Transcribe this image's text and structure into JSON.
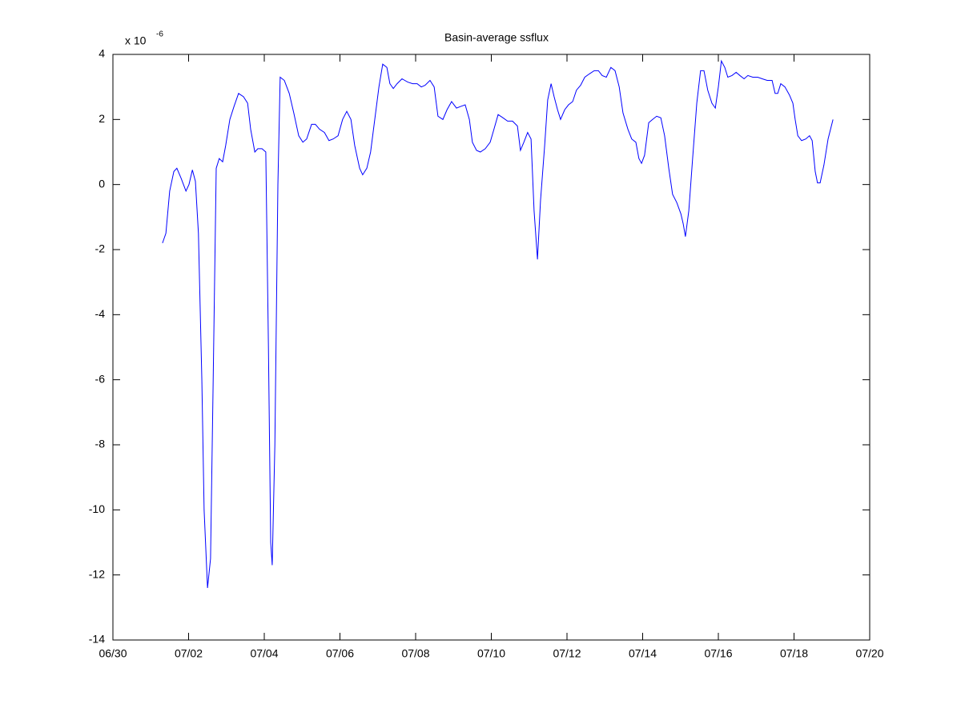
{
  "chart_data": {
    "type": "line",
    "title": "Basin-average ssflux",
    "y_multiplier": {
      "base": "x 10",
      "exponent": "-6"
    },
    "xlim": [
      0,
      20
    ],
    "xticks": [
      {
        "value": 0,
        "label": "06/30"
      },
      {
        "value": 2,
        "label": "07/02"
      },
      {
        "value": 4,
        "label": "07/04"
      },
      {
        "value": 6,
        "label": "07/06"
      },
      {
        "value": 8,
        "label": "07/08"
      },
      {
        "value": 10,
        "label": "07/10"
      },
      {
        "value": 12,
        "label": "07/12"
      },
      {
        "value": 14,
        "label": "07/14"
      },
      {
        "value": 16,
        "label": "07/16"
      },
      {
        "value": 18,
        "label": "07/18"
      },
      {
        "value": 20,
        "label": "07/20"
      }
    ],
    "ylim": [
      -14,
      4
    ],
    "yticks": [
      -14,
      -12,
      -10,
      -8,
      -6,
      -4,
      -2,
      0,
      2,
      4
    ],
    "grid": false,
    "x": [
      1.31,
      1.4,
      1.5,
      1.61,
      1.69,
      1.8,
      1.93,
      2.01,
      2.1,
      2.18,
      2.26,
      2.35,
      2.41,
      2.5,
      2.58,
      2.65,
      2.73,
      2.81,
      2.9,
      2.98,
      3.09,
      3.2,
      3.32,
      3.45,
      3.56,
      3.64,
      3.75,
      3.83,
      3.94,
      4.04,
      4.11,
      4.17,
      4.21,
      4.28,
      4.36,
      4.42,
      4.53,
      4.66,
      4.78,
      4.91,
      5.02,
      5.12,
      5.25,
      5.35,
      5.46,
      5.59,
      5.71,
      5.82,
      5.95,
      6.07,
      6.18,
      6.29,
      6.39,
      6.52,
      6.6,
      6.71,
      6.81,
      6.92,
      7.03,
      7.13,
      7.24,
      7.32,
      7.41,
      7.51,
      7.64,
      7.79,
      7.92,
      8.04,
      8.15,
      8.25,
      8.38,
      8.49,
      8.59,
      8.72,
      8.83,
      8.95,
      9.08,
      9.19,
      9.31,
      9.42,
      9.5,
      9.61,
      9.71,
      9.84,
      9.97,
      10.07,
      10.18,
      10.31,
      10.43,
      10.56,
      10.69,
      10.77,
      10.86,
      10.96,
      11.05,
      11.13,
      11.22,
      11.3,
      11.41,
      11.49,
      11.58,
      11.66,
      11.75,
      11.83,
      11.94,
      12.04,
      12.15,
      12.25,
      12.36,
      12.47,
      12.59,
      12.72,
      12.83,
      12.93,
      13.04,
      13.16,
      13.27,
      13.38,
      13.48,
      13.61,
      13.71,
      13.82,
      13.9,
      13.97,
      14.05,
      14.16,
      14.26,
      14.37,
      14.48,
      14.58,
      14.69,
      14.79,
      14.9,
      15.01,
      15.07,
      15.13,
      15.22,
      15.32,
      15.43,
      15.53,
      15.62,
      15.72,
      15.83,
      15.92,
      16.0,
      16.08,
      16.17,
      16.25,
      16.36,
      16.47,
      16.57,
      16.68,
      16.78,
      16.91,
      17.04,
      17.16,
      17.29,
      17.42,
      17.5,
      17.57,
      17.65,
      17.76,
      17.88,
      17.97,
      18.03,
      18.1,
      18.2,
      18.31,
      18.41,
      18.48,
      18.56,
      18.62,
      18.69,
      18.79,
      18.9,
      19.03
    ],
    "series": [
      {
        "color": "#0000ff",
        "values": [
          -1.8,
          -1.5,
          -0.2,
          0.4,
          0.5,
          0.2,
          -0.2,
          0.0,
          0.45,
          0.1,
          -1.5,
          -6,
          -10,
          -12.4,
          -11.5,
          -6,
          0.5,
          0.8,
          0.7,
          1.2,
          2.0,
          2.4,
          2.8,
          2.7,
          2.5,
          1.7,
          1.0,
          1.1,
          1.1,
          1.0,
          -5,
          -11,
          -11.7,
          -8,
          0,
          3.3,
          3.2,
          2.8,
          2.2,
          1.5,
          1.3,
          1.4,
          1.85,
          1.85,
          1.7,
          1.6,
          1.35,
          1.4,
          1.5,
          2.0,
          2.25,
          2.0,
          1.2,
          0.5,
          0.3,
          0.5,
          1.0,
          2.0,
          3.0,
          3.7,
          3.6,
          3.1,
          2.95,
          3.1,
          3.25,
          3.15,
          3.1,
          3.1,
          3.0,
          3.05,
          3.2,
          3.0,
          2.1,
          2.0,
          2.3,
          2.55,
          2.35,
          2.4,
          2.45,
          2.0,
          1.3,
          1.05,
          1.0,
          1.1,
          1.3,
          1.7,
          2.15,
          2.05,
          1.95,
          1.95,
          1.8,
          1.05,
          1.3,
          1.6,
          1.4,
          -0.8,
          -2.3,
          -0.5,
          1.2,
          2.6,
          3.1,
          2.7,
          2.3,
          2.0,
          2.3,
          2.45,
          2.55,
          2.9,
          3.05,
          3.3,
          3.4,
          3.5,
          3.5,
          3.35,
          3.3,
          3.6,
          3.5,
          3.0,
          2.2,
          1.7,
          1.4,
          1.3,
          0.8,
          0.65,
          0.9,
          1.9,
          2.0,
          2.1,
          2.05,
          1.5,
          0.5,
          -0.3,
          -0.55,
          -0.9,
          -1.2,
          -1.6,
          -0.8,
          0.8,
          2.5,
          3.5,
          3.5,
          2.9,
          2.5,
          2.35,
          3.0,
          3.8,
          3.6,
          3.3,
          3.35,
          3.45,
          3.35,
          3.25,
          3.35,
          3.3,
          3.3,
          3.25,
          3.2,
          3.2,
          2.8,
          2.8,
          3.1,
          3.0,
          2.75,
          2.5,
          2.0,
          1.5,
          1.35,
          1.4,
          1.5,
          1.35,
          0.4,
          0.05,
          0.05,
          0.6,
          1.4,
          2.0
        ]
      }
    ]
  }
}
